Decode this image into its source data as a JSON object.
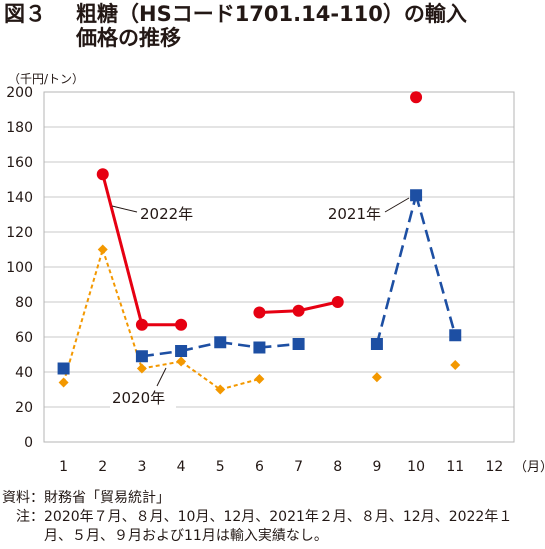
{
  "figure": {
    "number": "図３",
    "title": "粗糖（HSコード1701.14-110）の輸入",
    "title_line2": "価格の推移"
  },
  "chart_data": {
    "type": "line",
    "ylabel": "（千円/トン）",
    "xlabel": "（月）",
    "ylim": [
      0,
      200
    ],
    "yticks": [
      0,
      20,
      40,
      60,
      80,
      100,
      120,
      140,
      160,
      180,
      200
    ],
    "categories": [
      "1",
      "2",
      "3",
      "4",
      "5",
      "6",
      "7",
      "8",
      "9",
      "10",
      "11",
      "12"
    ],
    "grid": true,
    "series": [
      {
        "name": "2020年",
        "color": "#f39800",
        "style": "dotted",
        "marker": "diamond",
        "values": [
          34,
          110,
          42,
          46,
          30,
          36,
          null,
          null,
          37,
          null,
          44,
          null
        ]
      },
      {
        "name": "2021年",
        "color": "#1d4fa3",
        "style": "dashed",
        "marker": "square",
        "values": [
          42,
          null,
          49,
          52,
          57,
          54,
          56,
          null,
          56,
          141,
          61,
          null
        ]
      },
      {
        "name": "2022年",
        "color": "#e60012",
        "style": "solid",
        "marker": "circle",
        "values": [
          null,
          153,
          67,
          67,
          null,
          74,
          75,
          80,
          null,
          197,
          null,
          null
        ]
      }
    ]
  },
  "notes": {
    "source_label": "資料：",
    "source_text": "財務省「貿易統計」",
    "note_label": "注：",
    "note_text": "2020年７月、８月、10月、12月、2021年２月、８月、12月、2022年１月、５月、９月および11月は輸入実績なし。"
  }
}
